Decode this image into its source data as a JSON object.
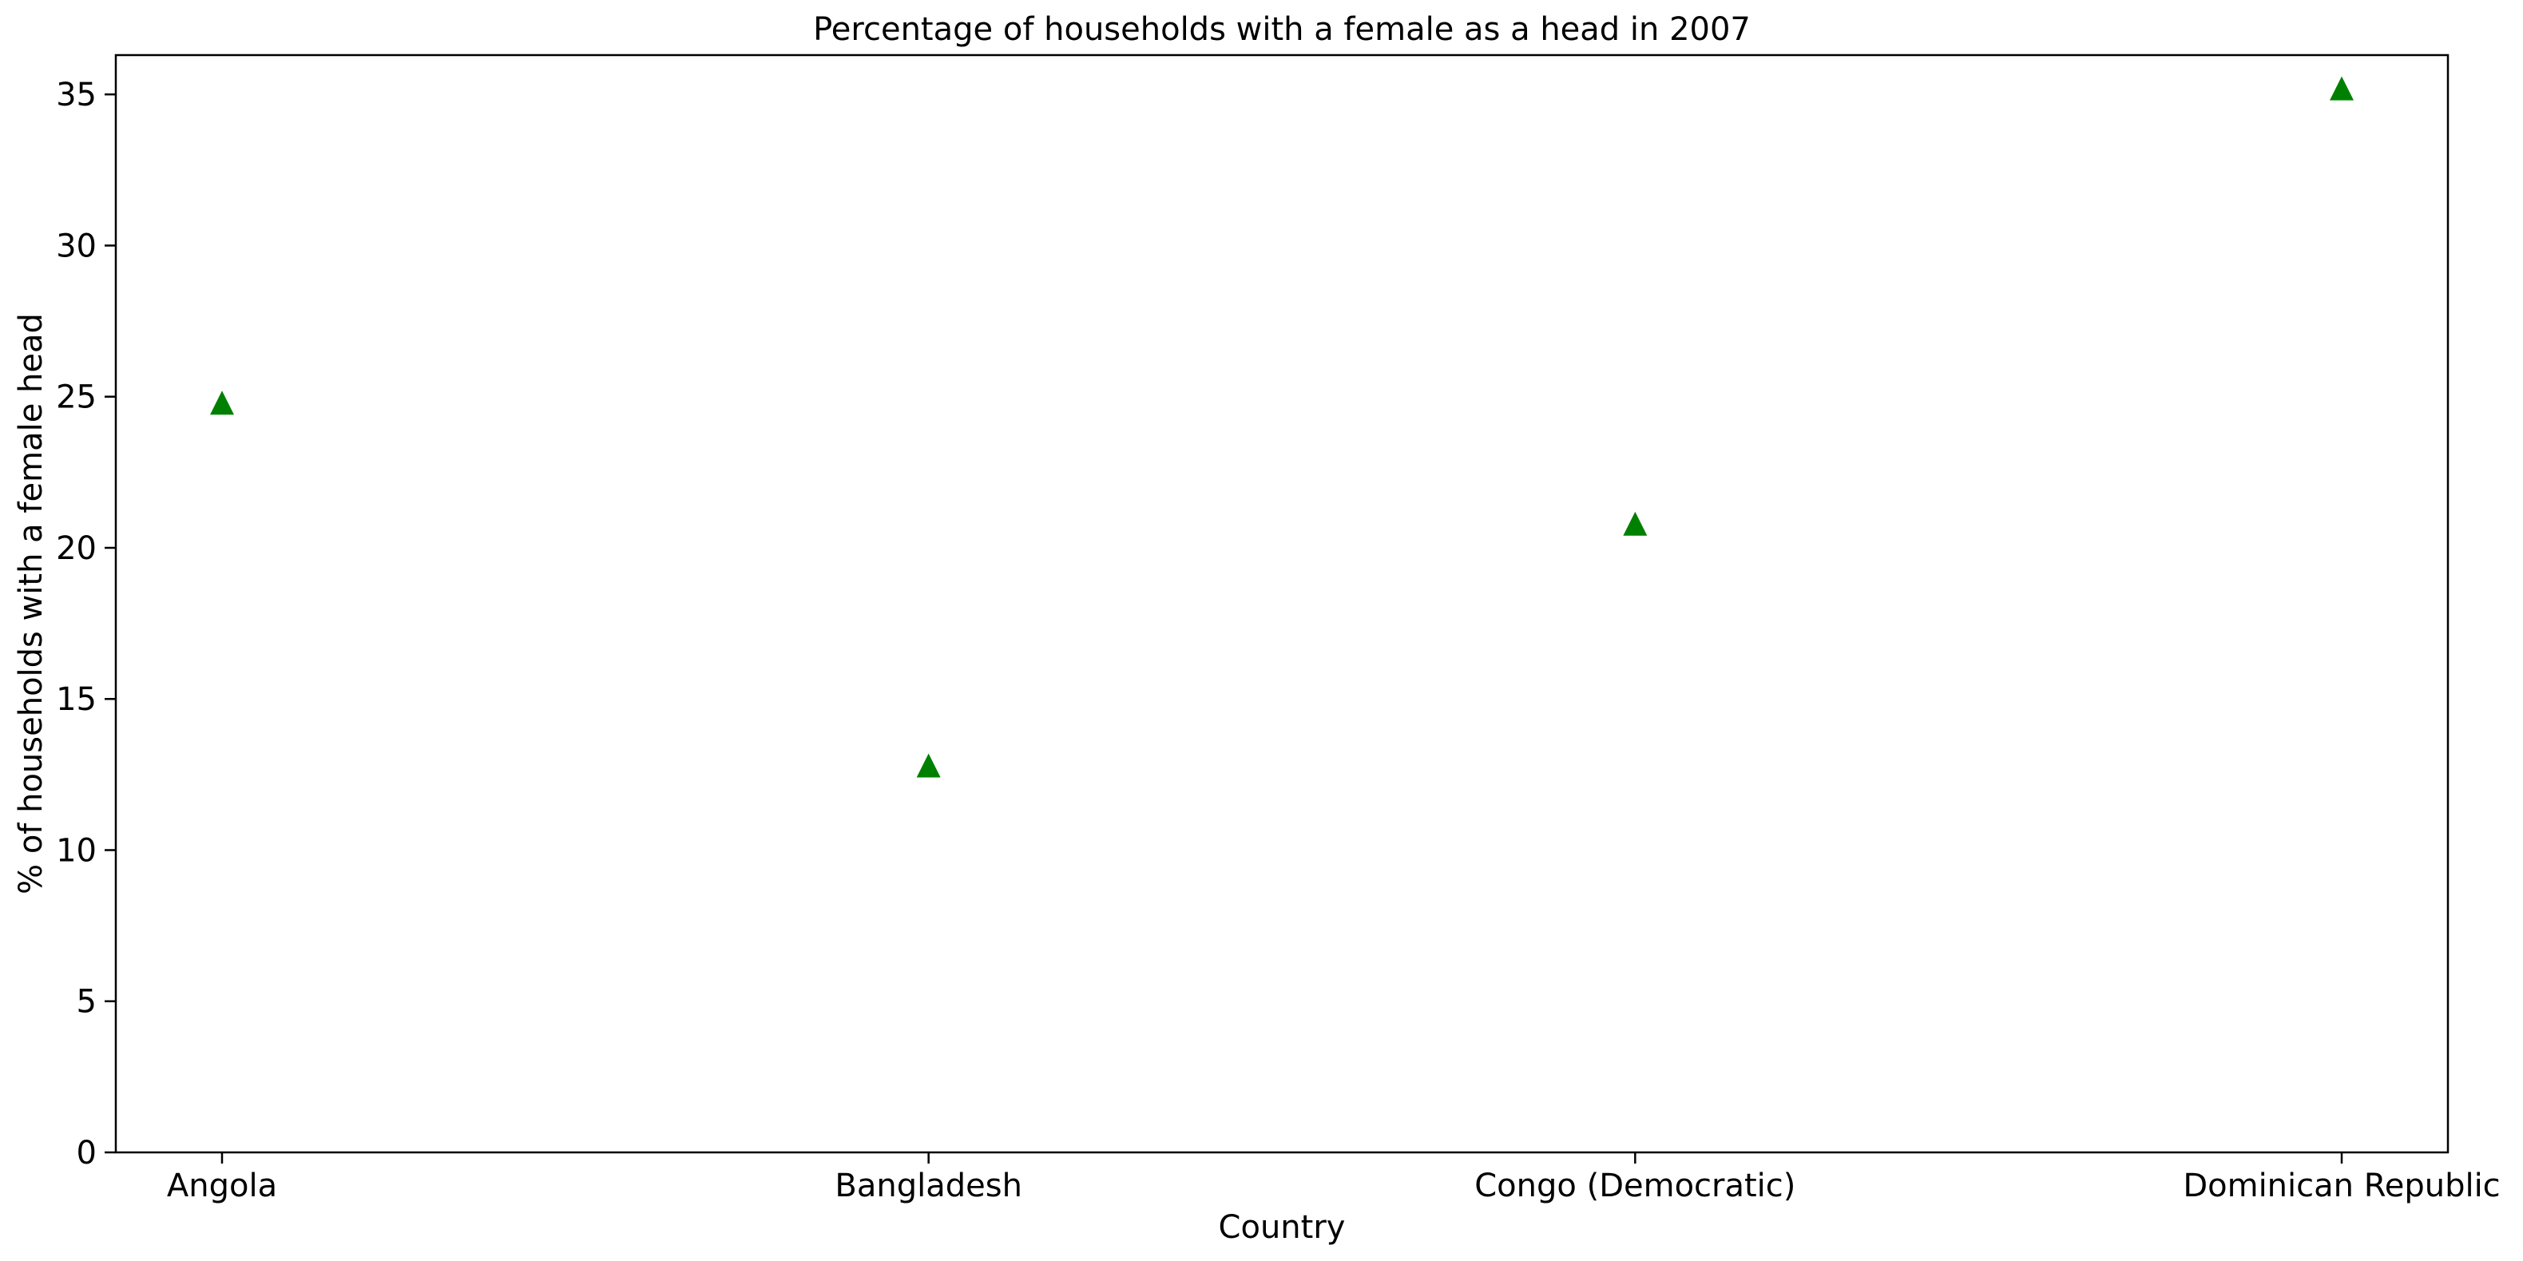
{
  "chart_data": {
    "type": "scatter",
    "title": "Percentage of households with a female as a head in 2007",
    "xlabel": "Country",
    "ylabel": "% of households with a female head",
    "categories": [
      "Angola",
      "Bangladesh",
      "Congo (Democratic)",
      "Dominican Republic"
    ],
    "values": [
      24.8,
      12.8,
      20.8,
      35.2
    ],
    "ylim": [
      0,
      36.3
    ],
    "yticks": [
      0,
      5,
      10,
      15,
      20,
      25,
      30,
      35
    ],
    "marker": "triangle-up",
    "marker_color": "#008000",
    "grid": false
  }
}
